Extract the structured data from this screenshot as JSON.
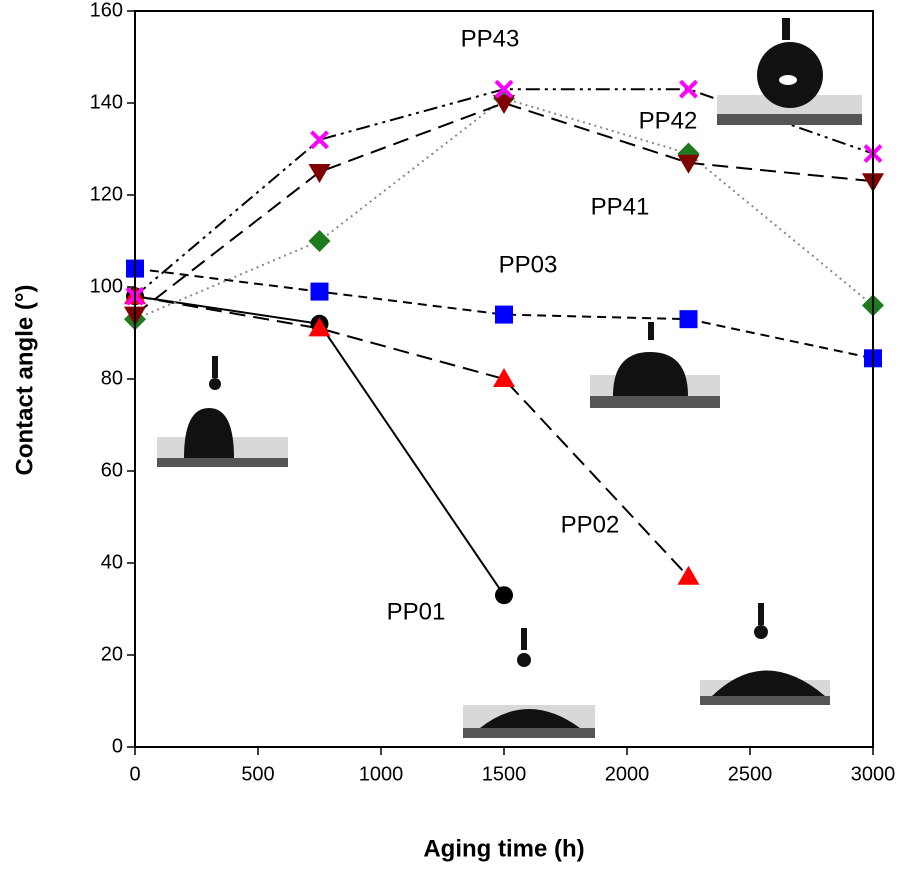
{
  "chart_data": {
    "type": "line",
    "xlabel": "Aging time (h)",
    "ylabel": "Contact angle (°)",
    "xlim": [
      0,
      3000
    ],
    "xticks": [
      0,
      500,
      1000,
      1500,
      2000,
      2500,
      3000
    ],
    "ylim": [
      0,
      160
    ],
    "yticks": [
      0,
      20,
      40,
      60,
      80,
      100,
      120,
      140,
      160
    ],
    "grid": false,
    "legend": false,
    "series": [
      {
        "name": "PP01",
        "color": "#000000",
        "marker": "circle",
        "linestyle": "solid",
        "x": [
          0,
          750,
          1500
        ],
        "values": [
          98,
          92,
          33
        ]
      },
      {
        "name": "PP02",
        "color": "#ff0000",
        "marker": "triangle",
        "linestyle": "longdash",
        "x": [
          0,
          750,
          1500,
          2250
        ],
        "values": [
          98,
          91,
          80,
          37
        ]
      },
      {
        "name": "PP03",
        "color": "#0000ff",
        "marker": "square",
        "linestyle": "dash",
        "x": [
          0,
          750,
          1500,
          2250,
          3000
        ],
        "values": [
          104,
          99,
          94,
          93,
          84.5
        ]
      },
      {
        "name": "PP41",
        "color": "#1e7a1e",
        "marker": "diamond",
        "linestyle": "dot",
        "x": [
          0,
          750,
          1500,
          2250,
          3000
        ],
        "values": [
          93,
          110,
          141,
          129,
          96
        ]
      },
      {
        "name": "PP42",
        "color": "#800000",
        "marker": "triangle-down",
        "linestyle": "longdash",
        "x": [
          0,
          750,
          1500,
          2250,
          3000
        ],
        "values": [
          94,
          125,
          140,
          127,
          123
        ]
      },
      {
        "name": "PP43",
        "color": "#ff00ff",
        "marker": "x",
        "linestyle": "dashdot",
        "x": [
          0,
          750,
          1500,
          2250,
          3000
        ],
        "values": [
          98,
          132,
          143,
          143,
          129
        ]
      }
    ]
  }
}
